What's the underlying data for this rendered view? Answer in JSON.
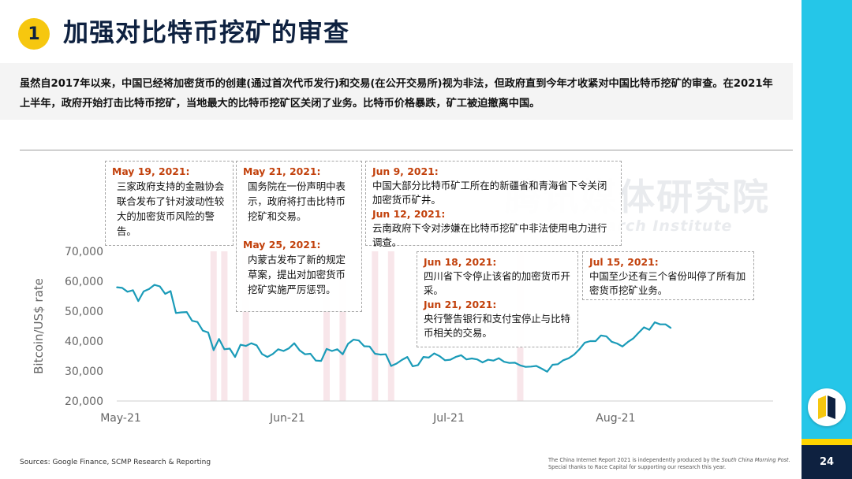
{
  "header": {
    "badge": "1",
    "title": "加强对比特币挖矿的审查"
  },
  "summary": "虽然自2017年以来，中国已经将加密货币的创建(通过首次代币发行)和交易(在公开交易所)视为非法，但政府直到今年才收紧对中国比特币挖矿的审查。在2021年上半年，政府开始打击比特币挖矿，当地最大的比特币挖矿区关闭了业务。比特币价格暴跌，矿工被迫撤离中国。",
  "watermark": {
    "cn": "腾讯媒体研究院",
    "en": "Research Institute"
  },
  "annotations": [
    {
      "entries": [
        {
          "date": "May 19, 2021:",
          "text": "三家政府支持的金融协会联合发布了针对波动性较大的加密货币风险的警告。"
        }
      ]
    },
    {
      "entries": [
        {
          "date": "May 21, 2021:",
          "text": "国务院在一份声明中表示，政府将打击比特币挖矿和交易。"
        },
        {
          "date": "May 25, 2021:",
          "text": "内蒙古发布了新的规定草案，提出对加密货币挖矿实施严厉惩罚。"
        }
      ]
    },
    {
      "entries": [
        {
          "date": "Jun 9, 2021:",
          "text": "中国大部分比特币矿工所在的新疆省和青海省下令关闭加密货币矿井。"
        },
        {
          "date": "Jun 12, 2021:",
          "text": "云南政府下令对涉嫌在比特币挖矿中非法使用电力进行调查。"
        }
      ]
    },
    {
      "entries": [
        {
          "date": "Jun 18, 2021:",
          "text": "四川省下令停止该省的加密货币开采。"
        },
        {
          "date": "Jun 21, 2021:",
          "text": "央行警告银行和支付宝停止与比特币相关的交易。"
        }
      ]
    },
    {
      "entries": [
        {
          "date": "Jul 15, 2021:",
          "text": "中国至少还有三个省份叫停了所有加密货币挖矿业务。"
        }
      ]
    }
  ],
  "chart_data": {
    "type": "line",
    "ylabel": "Bitcoin/US$ rate",
    "ylim": [
      20000,
      70000
    ],
    "yticks": [
      20000,
      30000,
      40000,
      50000,
      60000,
      70000
    ],
    "ytick_labels": [
      "20,000",
      "30,000",
      "40,000",
      "50,000",
      "60,000",
      "70,000"
    ],
    "x_start": "2021-05-01",
    "x_end": "2021-08-31",
    "xticks": [
      {
        "date": "2021-05-01",
        "label": "May-21"
      },
      {
        "date": "2021-06-01",
        "label": "Jun-21"
      },
      {
        "date": "2021-07-01",
        "label": "Jul-21"
      },
      {
        "date": "2021-08-01",
        "label": "Aug-21"
      }
    ],
    "highlight_dates": [
      "2021-05-19",
      "2021-05-21",
      "2021-05-25",
      "2021-06-09",
      "2021-06-12",
      "2021-06-18",
      "2021-06-21",
      "2021-07-15"
    ],
    "series": [
      {
        "color": "#1a9bb8",
        "x": [
          "2021-05-01",
          "2021-05-02",
          "2021-05-03",
          "2021-05-04",
          "2021-05-05",
          "2021-05-06",
          "2021-05-07",
          "2021-05-08",
          "2021-05-09",
          "2021-05-10",
          "2021-05-11",
          "2021-05-12",
          "2021-05-13",
          "2021-05-14",
          "2021-05-15",
          "2021-05-16",
          "2021-05-17",
          "2021-05-18",
          "2021-05-19",
          "2021-05-20",
          "2021-05-21",
          "2021-05-22",
          "2021-05-23",
          "2021-05-24",
          "2021-05-25",
          "2021-05-26",
          "2021-05-27",
          "2021-05-28",
          "2021-05-29",
          "2021-05-30",
          "2021-05-31",
          "2021-06-01",
          "2021-06-02",
          "2021-06-03",
          "2021-06-04",
          "2021-06-05",
          "2021-06-06",
          "2021-06-07",
          "2021-06-08",
          "2021-06-09",
          "2021-06-10",
          "2021-06-11",
          "2021-06-12",
          "2021-06-13",
          "2021-06-14",
          "2021-06-15",
          "2021-06-16",
          "2021-06-17",
          "2021-06-18",
          "2021-06-19",
          "2021-06-20",
          "2021-06-21",
          "2021-06-22",
          "2021-06-23",
          "2021-06-24",
          "2021-06-25",
          "2021-06-26",
          "2021-06-27",
          "2021-06-28",
          "2021-06-29",
          "2021-06-30",
          "2021-07-01",
          "2021-07-02",
          "2021-07-03",
          "2021-07-04",
          "2021-07-05",
          "2021-07-06",
          "2021-07-07",
          "2021-07-08",
          "2021-07-09",
          "2021-07-10",
          "2021-07-11",
          "2021-07-12",
          "2021-07-13",
          "2021-07-14",
          "2021-07-15",
          "2021-07-16",
          "2021-07-17",
          "2021-07-18",
          "2021-07-19",
          "2021-07-20",
          "2021-07-21",
          "2021-07-22",
          "2021-07-23",
          "2021-07-24",
          "2021-07-25",
          "2021-07-26",
          "2021-07-27",
          "2021-07-28",
          "2021-07-29",
          "2021-07-30",
          "2021-07-31",
          "2021-08-01",
          "2021-08-02",
          "2021-08-03",
          "2021-08-04",
          "2021-08-05",
          "2021-08-06",
          "2021-08-07",
          "2021-08-08",
          "2021-08-09",
          "2021-08-10",
          "2021-08-11",
          "2021-08-12"
        ],
        "values": [
          58000,
          57800,
          56500,
          57000,
          53400,
          56600,
          57400,
          58800,
          58300,
          55800,
          56700,
          49400,
          49600,
          49700,
          46800,
          46400,
          43500,
          42900,
          37000,
          40700,
          37300,
          37500,
          34700,
          38800,
          38400,
          39300,
          38600,
          35700,
          34700,
          35700,
          37300,
          36700,
          37600,
          39300,
          36900,
          35600,
          35800,
          33500,
          33400,
          37400,
          36700,
          37300,
          35600,
          39100,
          40500,
          40200,
          38300,
          38200,
          35800,
          35500,
          35600,
          31700,
          32500,
          33700,
          34700,
          31600,
          32000,
          34700,
          34500,
          35900,
          35000,
          33600,
          33800,
          34700,
          35300,
          33900,
          34200,
          33900,
          32900,
          33800,
          33500,
          34300,
          33100,
          32700,
          32800,
          31900,
          31400,
          31500,
          31700,
          30800,
          29800,
          32100,
          32300,
          33600,
          34300,
          35500,
          37300,
          39500,
          40000,
          40000,
          41900,
          41600,
          39800,
          39200,
          38200,
          39700,
          40900,
          42800,
          44600,
          43800,
          46300,
          45600,
          45600,
          44400
        ]
      }
    ]
  },
  "footer": {
    "source": "Sources: Google Finance, SCMP Research & Reporting",
    "credit_pre": "The China Internet Report 2021 is independently produced by the ",
    "credit_pub": "South China Morning Post",
    "credit_post": ". Special thanks to Race Capital for supporting our research this year.",
    "page": "24"
  },
  "colors": {
    "accent": "#25c6e8",
    "navy": "#0e2140",
    "yellow": "#f6c70f",
    "line": "#1a9bb8",
    "highlight": "#f8e6ea",
    "date": "#c2410c"
  },
  "icons": {
    "logo": "scmp-logo-icon"
  }
}
